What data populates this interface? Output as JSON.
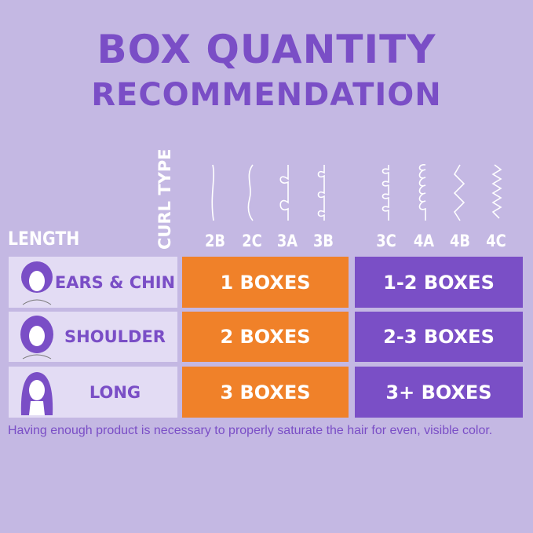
{
  "title_line1": "BOX QUANTITY",
  "title_line2": "RECOMMENDATION",
  "length_header": "LENGTH",
  "curl_type_header": "CURL TYPE",
  "curl_types": [
    "2B",
    "2C",
    "3A",
    "3B",
    "3C",
    "4A",
    "4B",
    "4C"
  ],
  "rows": [
    {
      "length": "EARS & CHIN",
      "group1": "1 BOXES",
      "group2": "1-2 BOXES"
    },
    {
      "length": "SHOULDER",
      "group1": "2 BOXES",
      "group2": "2-3 BOXES"
    },
    {
      "length": "LONG",
      "group1": "3 BOXES",
      "group2": "3+ BOXES"
    }
  ],
  "note": "Having enough product is necessary to properly saturate the hair for even, visible color.",
  "colors": {
    "background": "#c4b8e3",
    "accent_purple": "#7a4fc6",
    "orange": "#f08129",
    "light_cell": "#e3dcf4"
  }
}
